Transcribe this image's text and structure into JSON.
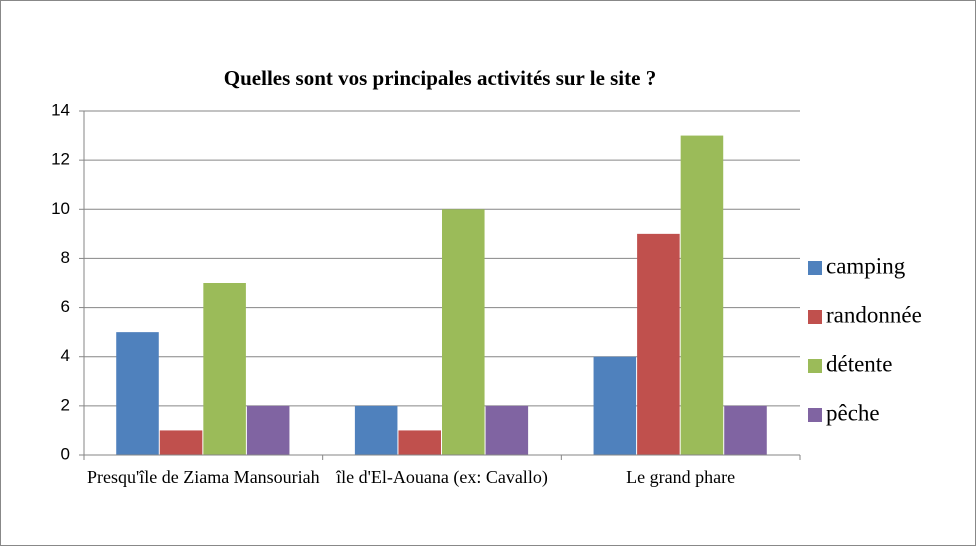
{
  "chart_data": {
    "type": "bar",
    "title": "Quelles sont vos principales activités sur le site ?",
    "categories": [
      "Presqu'île de Ziama Mansouriah",
      "île d'El-Aouana (ex: Cavallo)",
      "Le grand phare"
    ],
    "series": [
      {
        "name": "camping",
        "color": "#4f81bd",
        "values": [
          5,
          2,
          4
        ]
      },
      {
        "name": "randonnée",
        "color": "#c0504d",
        "values": [
          1,
          1,
          9
        ]
      },
      {
        "name": "détente",
        "color": "#9bbb59",
        "values": [
          7,
          10,
          13
        ]
      },
      {
        "name": "pêche",
        "color": "#8064a2",
        "values": [
          2,
          2,
          2
        ]
      }
    ],
    "ylim": [
      0,
      14
    ],
    "yticks": [
      0,
      2,
      4,
      6,
      8,
      10,
      12,
      14
    ],
    "grid": true,
    "legend": "right"
  }
}
